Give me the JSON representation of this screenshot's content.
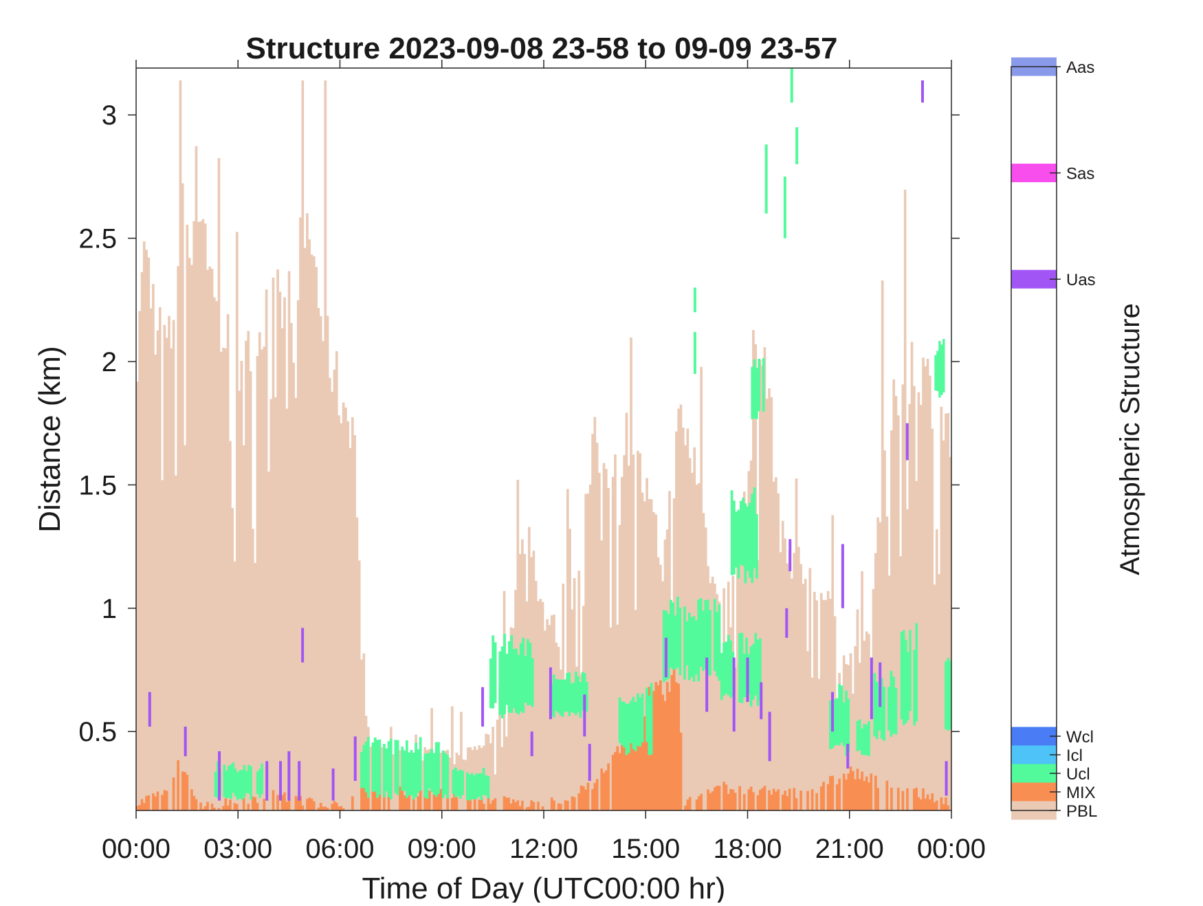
{
  "chart_data": {
    "type": "heatmap",
    "title": "Structure 2023-09-08 23-58 to 09-09 23-57",
    "xlabel": "Time of Day (UTC00:00 hr)",
    "ylabel": "Distance (km)",
    "x_unit": "hours",
    "xlim": [
      0,
      24
    ],
    "ylim": [
      0.18,
      3.19
    ],
    "x_ticks": [
      0,
      3,
      6,
      9,
      12,
      15,
      18,
      21,
      24
    ],
    "x_tick_labels": [
      "00:00",
      "03:00",
      "06:00",
      "09:00",
      "12:00",
      "15:00",
      "18:00",
      "21:00",
      "00:00"
    ],
    "y_ticks": [
      0.5,
      1,
      1.5,
      2,
      2.5,
      3
    ],
    "y_tick_labels": [
      "0.5",
      "1",
      "1.5",
      "2",
      "2.5",
      "3"
    ],
    "grid": false,
    "colorbar": {
      "title": "Atmospheric Structure",
      "categories": [
        {
          "code": "PBL",
          "label": "PBL",
          "color": "#EACAB5"
        },
        {
          "code": "MIX",
          "label": "MIX",
          "color": "#F98E52"
        },
        {
          "code": "Ucl",
          "label": "Ucl",
          "color": "#52FA9B"
        },
        {
          "code": "Icl",
          "label": "Icl",
          "color": "#4EC3F8"
        },
        {
          "code": "Wcl",
          "label": "Wcl",
          "color": "#4A7CF5"
        },
        {
          "code": "Uas",
          "label": "Uas",
          "color": "#A155F5"
        },
        {
          "code": "Sas",
          "label": "Sas",
          "color": "#F84EEE"
        },
        {
          "code": "Aas",
          "label": "Aas",
          "color": "#8A9AEB"
        }
      ]
    },
    "pbl_top_profile": {
      "x": [
        0,
        0.3,
        0.6,
        1.0,
        1.3,
        1.6,
        1.8,
        2.0,
        2.4,
        2.8,
        3.2,
        3.5,
        4.0,
        4.4,
        4.8,
        5.1,
        5.5,
        6.0,
        6.4,
        6.8,
        7.5,
        8.5,
        9.5,
        10.5,
        11.0,
        11.5,
        12.0,
        12.5,
        13.0,
        13.5,
        14.0,
        14.5,
        15.0,
        15.5,
        16.0,
        16.5,
        17.0,
        17.5,
        18.0,
        18.5,
        19.0,
        19.5,
        20.0,
        20.5,
        21.0,
        21.5,
        22.0,
        22.5,
        23.0,
        23.5,
        24.0
      ],
      "y": [
        2.3,
        2.5,
        2.2,
        2.1,
        2.65,
        2.6,
        2.8,
        2.65,
        2.2,
        2.1,
        2.0,
        2.15,
        2.25,
        2.3,
        2.5,
        2.6,
        2.2,
        1.9,
        1.8,
        0.45,
        0.4,
        0.42,
        0.4,
        0.5,
        0.9,
        1.4,
        1.0,
        0.9,
        1.2,
        1.7,
        1.6,
        1.75,
        1.5,
        1.2,
        1.8,
        1.6,
        1.1,
        1.15,
        1.5,
        2.1,
        1.3,
        1.2,
        1.1,
        1.0,
        0.8,
        0.9,
        1.6,
        2.0,
        2.05,
        1.9,
        1.7
      ]
    },
    "mix_top_profile": {
      "x": [
        0,
        1.0,
        1.2,
        1.5,
        2.0,
        4.0,
        5.0,
        6.0,
        7.0,
        12.0,
        13.0,
        13.5,
        14.0,
        14.5,
        15.0,
        15.5,
        16.0,
        16.1,
        17.0,
        18.0,
        19.0,
        20.0,
        21.0,
        22.0,
        23.0,
        24.0
      ],
      "y": [
        0.2,
        0.26,
        0.36,
        0.3,
        0.2,
        0.24,
        0.22,
        0.2,
        0.28,
        0.2,
        0.25,
        0.3,
        0.36,
        0.55,
        0.62,
        0.65,
        0.72,
        0.2,
        0.28,
        0.26,
        0.25,
        0.26,
        0.34,
        0.28,
        0.25,
        0.22
      ]
    },
    "ucl_layers": [
      {
        "x": [
          2.3,
          3.8
        ],
        "y": [
          0.22,
          0.38
        ]
      },
      {
        "x": [
          6.6,
          9.2
        ],
        "y": [
          0.22,
          0.48
        ]
      },
      {
        "x": [
          9.3,
          10.4
        ],
        "y": [
          0.22,
          0.36
        ]
      },
      {
        "x": [
          10.4,
          11.7
        ],
        "y": [
          0.55,
          0.9
        ]
      },
      {
        "x": [
          12.2,
          13.3
        ],
        "y": [
          0.55,
          0.75
        ]
      },
      {
        "x": [
          14.2,
          15.2
        ],
        "y": [
          0.4,
          0.7
        ]
      },
      {
        "x": [
          15.5,
          17.2
        ],
        "y": [
          0.7,
          1.05
        ]
      },
      {
        "x": [
          17.2,
          18.4
        ],
        "y": [
          0.6,
          0.9
        ]
      },
      {
        "x": [
          18.1,
          18.5
        ],
        "y": [
          1.75,
          2.05
        ]
      },
      {
        "x": [
          17.5,
          18.3
        ],
        "y": [
          1.1,
          1.5
        ]
      },
      {
        "x": [
          20.4,
          21.0
        ],
        "y": [
          0.4,
          0.7
        ]
      },
      {
        "x": [
          21.2,
          21.6
        ],
        "y": [
          0.4,
          0.55
        ]
      },
      {
        "x": [
          21.7,
          22.4
        ],
        "y": [
          0.45,
          0.75
        ]
      },
      {
        "x": [
          22.5,
          23.0
        ],
        "y": [
          0.5,
          0.95
        ]
      },
      {
        "x": [
          23.5,
          23.8
        ],
        "y": [
          1.85,
          2.1
        ]
      },
      {
        "x": [
          23.8,
          24.0
        ],
        "y": [
          0.5,
          0.8
        ]
      }
    ],
    "uas_segments": [
      {
        "x": 0.4,
        "y": [
          0.52,
          0.66
        ]
      },
      {
        "x": 1.45,
        "y": [
          0.4,
          0.52
        ]
      },
      {
        "x": 2.45,
        "y": [
          0.22,
          0.42
        ]
      },
      {
        "x": 3.85,
        "y": [
          0.22,
          0.38
        ]
      },
      {
        "x": 4.25,
        "y": [
          0.22,
          0.38
        ]
      },
      {
        "x": 4.5,
        "y": [
          0.22,
          0.42
        ]
      },
      {
        "x": 4.8,
        "y": [
          0.22,
          0.38
        ]
      },
      {
        "x": 4.9,
        "y": [
          0.78,
          0.92
        ]
      },
      {
        "x": 5.8,
        "y": [
          0.22,
          0.35
        ]
      },
      {
        "x": 6.45,
        "y": [
          0.3,
          0.48
        ]
      },
      {
        "x": 10.2,
        "y": [
          0.52,
          0.68
        ]
      },
      {
        "x": 11.65,
        "y": [
          0.4,
          0.5
        ]
      },
      {
        "x": 12.2,
        "y": [
          0.55,
          0.76
        ]
      },
      {
        "x": 13.2,
        "y": [
          0.48,
          0.65
        ]
      },
      {
        "x": 13.35,
        "y": [
          0.3,
          0.45
        ]
      },
      {
        "x": 15.6,
        "y": [
          0.72,
          0.88
        ]
      },
      {
        "x": 16.8,
        "y": [
          0.58,
          0.8
        ]
      },
      {
        "x": 17.6,
        "y": [
          0.5,
          0.8
        ]
      },
      {
        "x": 18.0,
        "y": [
          0.62,
          0.8
        ]
      },
      {
        "x": 18.4,
        "y": [
          0.55,
          0.7
        ]
      },
      {
        "x": 18.65,
        "y": [
          0.38,
          0.58
        ]
      },
      {
        "x": 19.25,
        "y": [
          1.15,
          1.28
        ]
      },
      {
        "x": 19.15,
        "y": [
          0.88,
          1.0
        ]
      },
      {
        "x": 20.5,
        "y": [
          0.5,
          0.66
        ]
      },
      {
        "x": 20.8,
        "y": [
          1.0,
          1.26
        ]
      },
      {
        "x": 20.95,
        "y": [
          0.35,
          0.45
        ]
      },
      {
        "x": 21.65,
        "y": [
          0.55,
          0.8
        ]
      },
      {
        "x": 21.9,
        "y": [
          0.6,
          0.78
        ]
      },
      {
        "x": 22.7,
        "y": [
          1.6,
          1.75
        ]
      },
      {
        "x": 23.15,
        "y": [
          3.05,
          3.14
        ]
      },
      {
        "x": 23.85,
        "y": [
          0.24,
          0.38
        ]
      }
    ],
    "high_ucl_segments": [
      {
        "x": 16.45,
        "y": [
          2.2,
          2.3
        ]
      },
      {
        "x": 16.45,
        "y": [
          1.95,
          2.12
        ]
      },
      {
        "x": 18.55,
        "y": [
          2.6,
          2.88
        ]
      },
      {
        "x": 19.1,
        "y": [
          2.5,
          2.75
        ]
      },
      {
        "x": 19.3,
        "y": [
          3.05,
          3.19
        ]
      },
      {
        "x": 19.45,
        "y": [
          2.8,
          2.95
        ]
      }
    ]
  }
}
